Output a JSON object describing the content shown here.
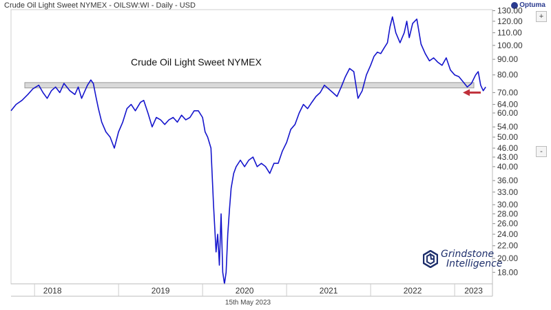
{
  "header": {
    "title": "Crude Oil Light Sweet NYMEX - OILSW:WI - Daily - USD",
    "brand": "Optuma"
  },
  "controls": {
    "zoom_out": "-",
    "zoom_in": "+"
  },
  "footer": {
    "date": "15th May 2023"
  },
  "logo": {
    "line1": "Grindstone",
    "line2": "Intelligence"
  },
  "colors": {
    "series": "#1414cc",
    "band": "#d9d9d9",
    "arrow": "#c0303a",
    "grid": "#e6e6e6"
  },
  "chart_data": {
    "type": "line",
    "title": "Crude Oil Light Sweet NYMEX",
    "xlabel": "",
    "ylabel": "",
    "y_scale": "log",
    "ylim": [
      16.5,
      131
    ],
    "y_ticks": [
      "130.00",
      "120.00",
      "110.00",
      "100.00",
      "90.00",
      "80.00",
      "70.00",
      "64.00",
      "60.00",
      "54.00",
      "50.00",
      "46.00",
      "43.00",
      "40.00",
      "36.00",
      "33.00",
      "30.00",
      "28.00",
      "26.00",
      "24.00",
      "22.00",
      "20.00",
      "18.00"
    ],
    "x_ticks": [
      "2018",
      "2019",
      "2020",
      "2021",
      "2022",
      "2023"
    ],
    "x_tick_values": [
      2018.0,
      2019.0,
      2020.0,
      2021.0,
      2022.0,
      2023.0
    ],
    "xlim": [
      2017.72,
      2023.45
    ],
    "resistance_band": [
      72.5,
      75.5
    ],
    "series": [
      {
        "x": [
          2017.72,
          2017.78,
          2017.85,
          2017.92,
          2017.98,
          2018.05,
          2018.1,
          2018.15,
          2018.2,
          2018.25,
          2018.3,
          2018.35,
          2018.42,
          2018.48,
          2018.52,
          2018.56,
          2018.6,
          2018.63,
          2018.67,
          2018.7,
          2018.73,
          2018.76,
          2018.8,
          2018.85,
          2018.9,
          2018.95,
          2019.0,
          2019.05,
          2019.1,
          2019.15,
          2019.2,
          2019.26,
          2019.3,
          2019.35,
          2019.4,
          2019.45,
          2019.5,
          2019.55,
          2019.6,
          2019.65,
          2019.7,
          2019.75,
          2019.8,
          2019.85,
          2019.9,
          2019.95,
          2020.0,
          2020.03,
          2020.06,
          2020.1,
          2020.13,
          2020.16,
          2020.18,
          2020.2,
          2020.22,
          2020.24,
          2020.26,
          2020.28,
          2020.3,
          2020.32,
          2020.34,
          2020.37,
          2020.4,
          2020.45,
          2020.5,
          2020.55,
          2020.6,
          2020.65,
          2020.7,
          2020.75,
          2020.8,
          2020.85,
          2020.9,
          2020.95,
          2021.0,
          2021.05,
          2021.1,
          2021.15,
          2021.2,
          2021.25,
          2021.3,
          2021.35,
          2021.4,
          2021.45,
          2021.5,
          2021.55,
          2021.6,
          2021.65,
          2021.7,
          2021.75,
          2021.8,
          2021.85,
          2021.9,
          2021.95,
          2022.0,
          2022.04,
          2022.08,
          2022.12,
          2022.16,
          2022.2,
          2022.23,
          2022.26,
          2022.3,
          2022.35,
          2022.4,
          2022.43,
          2022.46,
          2022.5,
          2022.55,
          2022.6,
          2022.65,
          2022.7,
          2022.75,
          2022.8,
          2022.85,
          2022.9,
          2022.95,
          2023.0,
          2023.05,
          2023.1,
          2023.15,
          2023.2,
          2023.25,
          2023.28,
          2023.31,
          2023.34,
          2023.37
        ],
        "y": [
          61,
          64,
          66,
          69,
          72,
          74,
          70,
          67,
          71,
          73,
          70,
          75,
          71,
          69,
          73,
          67,
          71,
          74,
          77,
          75,
          68,
          62,
          56,
          52,
          50,
          46,
          52,
          56,
          62,
          64,
          61,
          65,
          66,
          60,
          54,
          58,
          57,
          55,
          57,
          58,
          56,
          59,
          57,
          58,
          61,
          61,
          58,
          52,
          50,
          46,
          30,
          21,
          24,
          19,
          28,
          18,
          16.5,
          18,
          24,
          29,
          34,
          38,
          40,
          42,
          40,
          42,
          43,
          40,
          41,
          40,
          38,
          41,
          41,
          45,
          48,
          53,
          55,
          60,
          64,
          62,
          65,
          68,
          70,
          74,
          72,
          70,
          68,
          73,
          79,
          84,
          82,
          67,
          71,
          80,
          86,
          92,
          95,
          94,
          98,
          102,
          115,
          124,
          110,
          102,
          110,
          120,
          106,
          118,
          122,
          101,
          94,
          89,
          91,
          88,
          86,
          91,
          83,
          80,
          79,
          76,
          73,
          75,
          80,
          82,
          74,
          71,
          73
        ]
      }
    ],
    "annotation_arrow_value": 70
  }
}
